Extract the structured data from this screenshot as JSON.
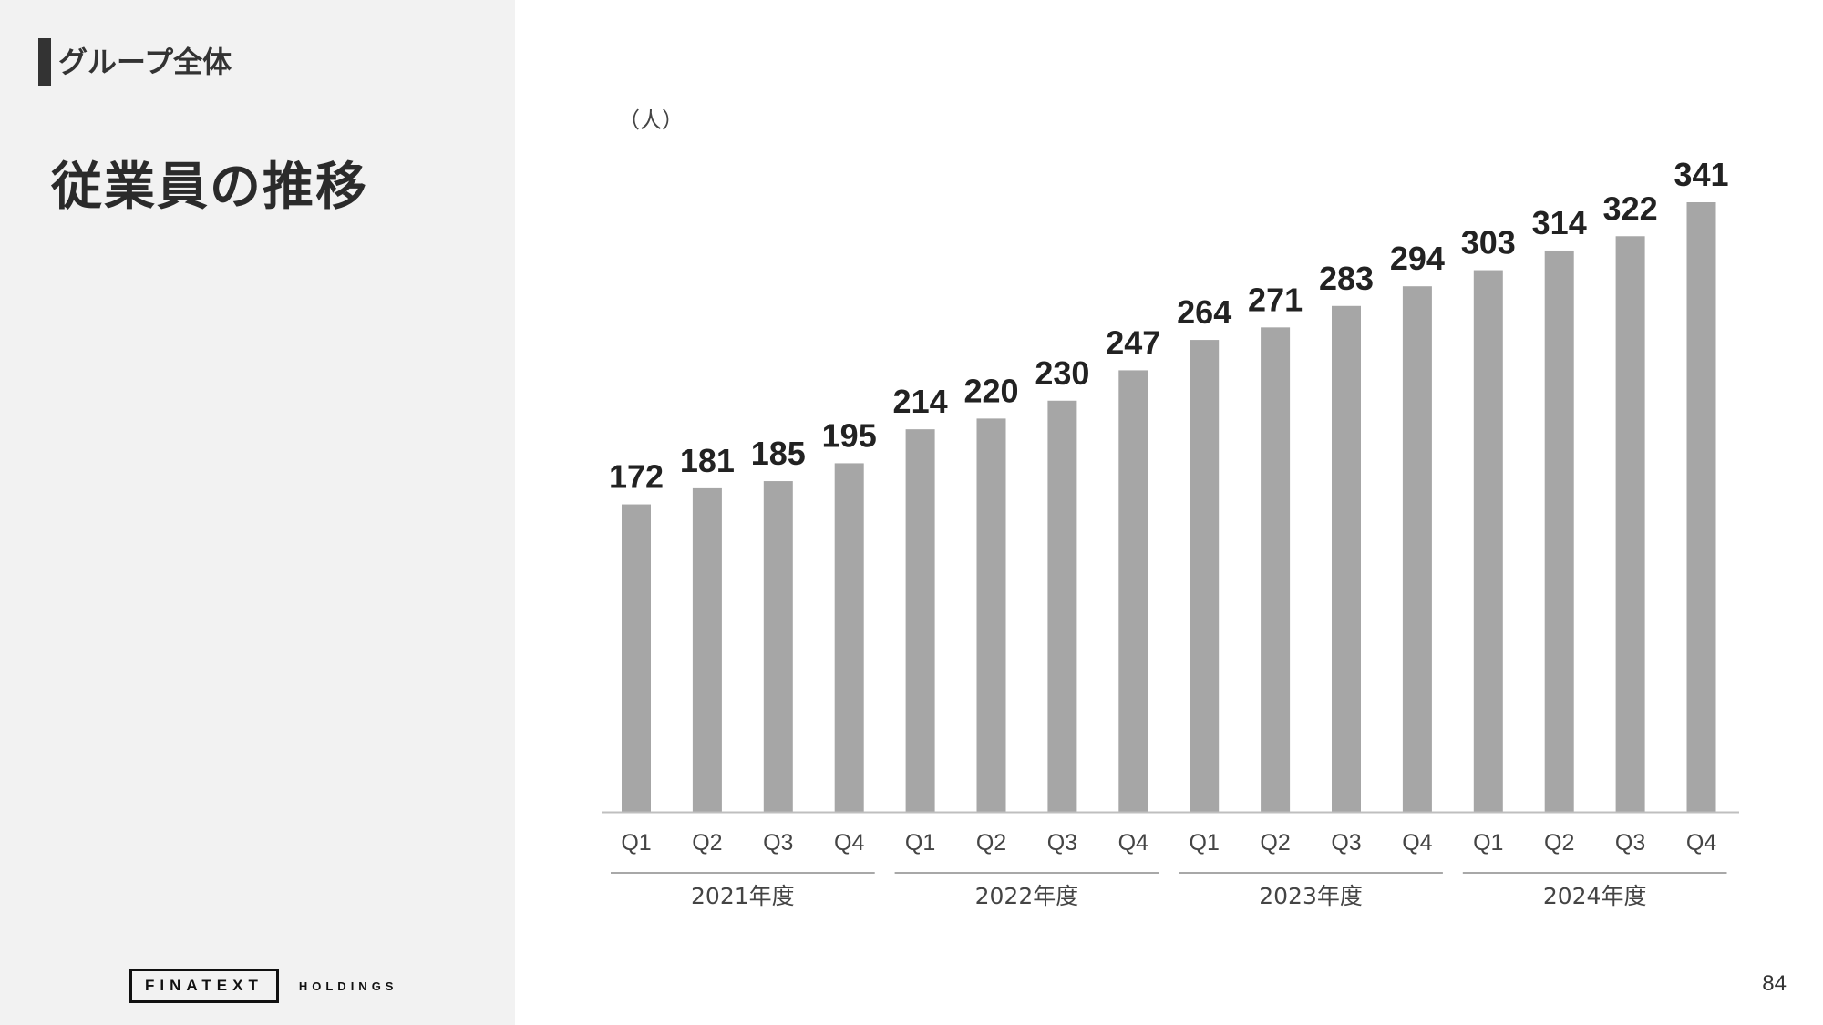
{
  "header": {
    "section_label": "グループ全体",
    "page_title": "従業員の推移"
  },
  "logo": {
    "main": "FINATEXT",
    "sub": "HOLDINGS"
  },
  "page_number": "84",
  "chart_data": {
    "type": "bar",
    "unit_label": "（人）",
    "categories": [
      "Q1",
      "Q2",
      "Q3",
      "Q4",
      "Q1",
      "Q2",
      "Q3",
      "Q4",
      "Q1",
      "Q2",
      "Q3",
      "Q4",
      "Q1",
      "Q2",
      "Q3",
      "Q4"
    ],
    "values": [
      172,
      181,
      185,
      195,
      214,
      220,
      230,
      247,
      264,
      271,
      283,
      294,
      303,
      314,
      322,
      341
    ],
    "groups": [
      {
        "label": "2021年度",
        "start": 0,
        "end": 3
      },
      {
        "label": "2022年度",
        "start": 4,
        "end": 7
      },
      {
        "label": "2023年度",
        "start": 8,
        "end": 11
      },
      {
        "label": "2024年度",
        "start": 12,
        "end": 15
      }
    ],
    "bar_color": "#a6a6a6",
    "ylim": [
      0,
      341
    ],
    "grid": false,
    "legend": "none"
  }
}
